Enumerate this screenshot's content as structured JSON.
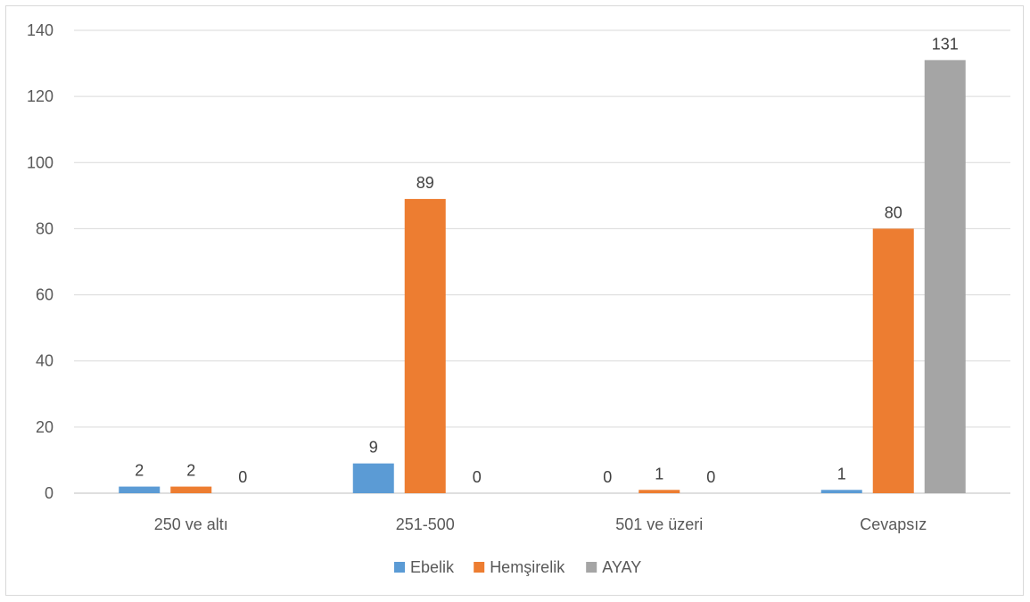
{
  "chart_data": {
    "type": "bar",
    "categories": [
      "250 ve altı",
      "251-500",
      "501 ve üzeri",
      "Cevapsız"
    ],
    "series": [
      {
        "name": "Ebelik",
        "values": [
          2,
          9,
          0,
          1
        ],
        "color": "#5b9bd5"
      },
      {
        "name": "Hemşirelik",
        "values": [
          2,
          89,
          1,
          80
        ],
        "color": "#ed7d31"
      },
      {
        "name": "AYAY",
        "values": [
          0,
          0,
          0,
          131
        ],
        "color": "#a5a5a5"
      }
    ],
    "ylim": [
      0,
      140
    ],
    "yticks": [
      0,
      20,
      40,
      60,
      80,
      100,
      120,
      140
    ],
    "grid": true,
    "legend_position": "bottom"
  }
}
